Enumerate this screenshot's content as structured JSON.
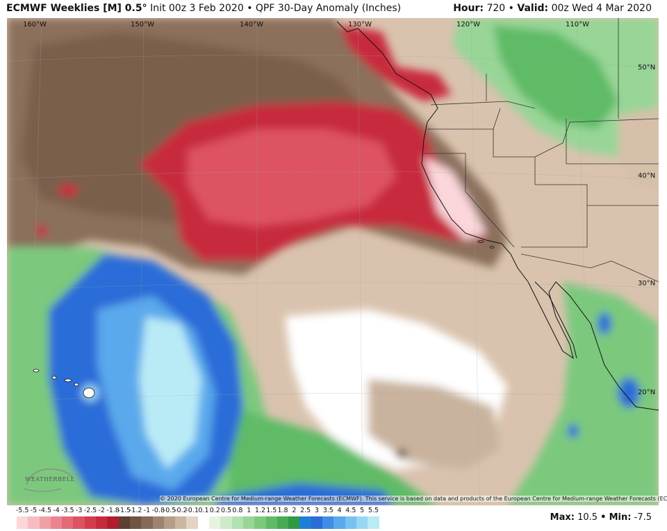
{
  "header": {
    "model": "ECMWF Weeklies [M] 0.5",
    "degree": "°",
    "init": "Init 00z 3 Feb 2020",
    "bullet": "•",
    "product": "QPF 30-Day Anomaly (Inches)",
    "hour_label": "Hour:",
    "hour_value": "720",
    "valid_label": "Valid:",
    "valid_value": "00z Wed 4 Mar 2020"
  },
  "longitudes": [
    "160°W",
    "150°W",
    "140°W",
    "130°W",
    "120°W",
    "110°W"
  ],
  "latitudes": [
    "50°N",
    "40°N",
    "30°N",
    "20°N"
  ],
  "copyright": "© 2020 European Centre for Medium-range Weather Forecasts (ECMWF). This service is based on data and products of the European Centre for Medium-range Weather Forecasts (ECMWF).",
  "logo": "WEATHERBELL",
  "colorbar": {
    "labels": [
      "-5.5",
      "-5",
      "-4.5",
      "-4",
      "-3.5",
      "-3",
      "-2.5",
      "-2",
      "-1.8",
      "-1.5",
      "-1.2",
      "-1",
      "-0.8",
      "-0.5",
      "-0.2",
      "-0.1",
      "0.1",
      "0.2",
      "0.5",
      "0.8",
      "1",
      "1.2",
      "1.5",
      "1.8",
      "2",
      "2.5",
      "3",
      "3.5",
      "4",
      "4.5",
      "5",
      "5.5"
    ],
    "colors": [
      "#fbd6da",
      "#f7bcc2",
      "#f19fa7",
      "#eb848f",
      "#e46a78",
      "#dd5362",
      "#d43c4e",
      "#c82a3c",
      "#b01d2e",
      "#5d4032",
      "#6f5443",
      "#846a57",
      "#9c8470",
      "#b49e88",
      "#cbb6a1",
      "#e2d3c4",
      "#ffffff",
      "#e6f3e2",
      "#cdeacb",
      "#b3e0b1",
      "#98d597",
      "#7cc97e",
      "#5fbb66",
      "#46ab52",
      "#2e9a44",
      "#1e7fd8",
      "#2b6cd8",
      "#3f8ee4",
      "#5aa9ec",
      "#78c2f0",
      "#98d8f4",
      "#b9ebf7"
    ]
  },
  "stats": {
    "max_label": "Max:",
    "max_value": "10.5",
    "min_label": "Min:",
    "min_value": "-7.5",
    "bullet": "•"
  }
}
